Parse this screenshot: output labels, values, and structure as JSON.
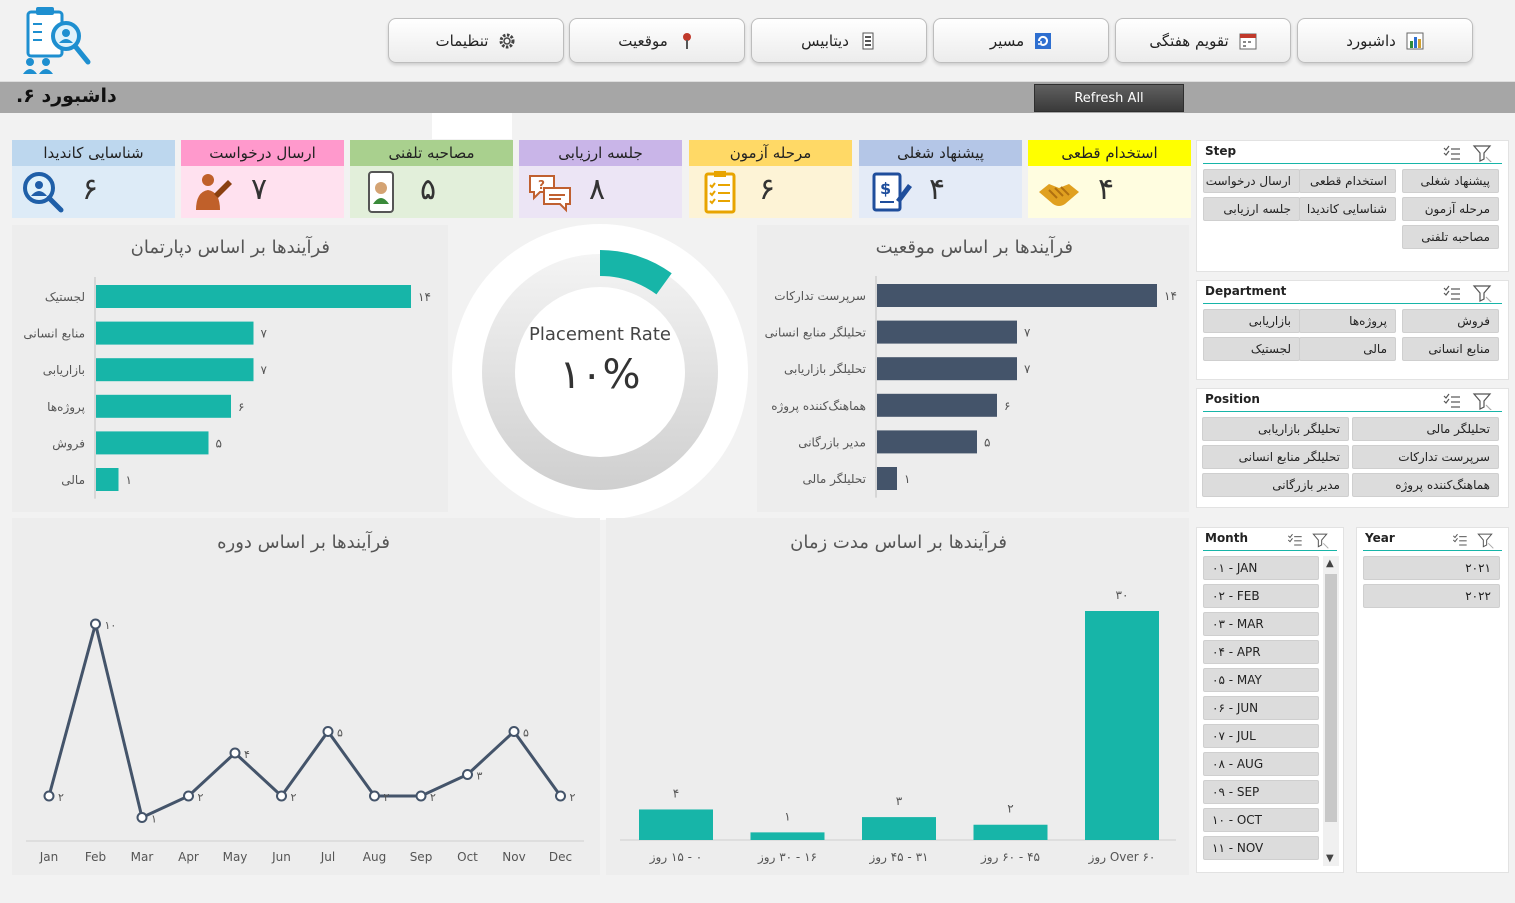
{
  "nav": [
    {
      "label": "داشبورد",
      "icon": "bar-chart-icon"
    },
    {
      "label": "تقویم هفتگی",
      "icon": "calendar-icon"
    },
    {
      "label": "مسیر",
      "icon": "refresh-icon"
    },
    {
      "label": "دیتابیس",
      "icon": "database-icon"
    },
    {
      "label": "موقعیت",
      "icon": "pin-icon"
    },
    {
      "label": "تنظیمات",
      "icon": "gear-icon"
    }
  ],
  "header": {
    "title": "داشبورد ۶.",
    "refresh_label": "Refresh All"
  },
  "kpis": [
    {
      "label": "استخدام قطعی",
      "value": "۴",
      "icon": "handshake-icon",
      "head_color": "#ffff00",
      "body_color": "#fffde0"
    },
    {
      "label": "پیشنهاد شغلی",
      "value": "۴",
      "icon": "contract-icon",
      "head_color": "#b4c6e7",
      "body_color": "#e4ebf7"
    },
    {
      "label": "مرحله آزمون",
      "value": "۶",
      "icon": "checklist-icon",
      "head_color": "#ffd966",
      "body_color": "#fdf3d6"
    },
    {
      "label": "جلسه ارزیابی",
      "value": "۸",
      "icon": "chat-icon",
      "head_color": "#c9b5e8",
      "body_color": "#ece5f5"
    },
    {
      "label": "مصاحبه تلفنی",
      "value": "۵",
      "icon": "phone-icon",
      "head_color": "#a9d08e",
      "body_color": "#e2efda"
    },
    {
      "label": "ارسال درخواست",
      "value": "۷",
      "icon": "person-write-icon",
      "head_color": "#ff99cc",
      "body_color": "#ffe1ef"
    },
    {
      "label": "شناسایی کاندیدا",
      "value": "۶",
      "icon": "person-search-icon",
      "head_color": "#bdd7ee",
      "body_color": "#ddebf7"
    }
  ],
  "placement": {
    "label": "Placement Rate",
    "value": "۱۰%",
    "fraction": 0.1,
    "accent": "#17b5a8"
  },
  "dept_chart_title": "فرآیندها بر اساس دپارتمان",
  "position_chart_title": "فرآیندها بر اساس موقعیت",
  "period_chart_title": "فرآیندها بر اساس دوره",
  "duration_chart_title": "فرآیندها بر اساس مدت زمان",
  "chart_data": [
    {
      "type": "bar",
      "orientation": "horizontal",
      "title": "فرآیندها بر اساس دپارتمان",
      "categories": [
        "لجستیک",
        "منابع انسانی",
        "بازاریابی",
        "پروژه‌ها",
        "فروش",
        "مالی"
      ],
      "values": [
        14,
        7,
        7,
        6,
        5,
        1
      ],
      "value_labels": [
        "۱۴",
        "۷",
        "۷",
        "۶",
        "۵",
        "۱"
      ],
      "color": "#17b5a8",
      "xlim": [
        0,
        14
      ]
    },
    {
      "type": "bar",
      "orientation": "horizontal",
      "title": "فرآیندها بر اساس موقعیت",
      "categories": [
        "سرپرست تدارکات",
        "تحلیلگر منابع انسانی",
        "تحلیلگر بازاریابی",
        "هماهنگ‌کننده پروژه",
        "مدیر بازرگانی",
        "تحلیلگر مالی"
      ],
      "values": [
        14,
        7,
        7,
        6,
        5,
        1
      ],
      "value_labels": [
        "۱۴",
        "۷",
        "۷",
        "۶",
        "۵",
        "۱"
      ],
      "color": "#44546a",
      "xlim": [
        0,
        14
      ]
    },
    {
      "type": "line",
      "title": "فرآیندها بر اساس دوره",
      "categories": [
        "Jan",
        "Feb",
        "Mar",
        "Apr",
        "May",
        "Jun",
        "Jul",
        "Aug",
        "Sep",
        "Oct",
        "Nov",
        "Dec"
      ],
      "values": [
        2,
        10,
        1,
        2,
        4,
        2,
        5,
        2,
        2,
        3,
        5,
        2
      ],
      "value_labels": [
        "۲",
        "۱۰",
        "۱",
        "۲",
        "۴",
        "۲",
        "۵",
        "۲",
        "۲",
        "۳",
        "۵",
        "۲"
      ],
      "color": "#44546a",
      "ylim": [
        0,
        11
      ]
    },
    {
      "type": "bar",
      "title": "فرآیندها بر اساس مدت زمان",
      "categories": [
        "۰ - ۱۵ روز",
        "۱۶ - ۳۰ روز",
        "۳۱ - ۴۵ روز",
        "۴۵ - ۶۰ روز",
        "Over ۶۰ روز"
      ],
      "values": [
        4,
        1,
        3,
        2,
        30
      ],
      "value_labels": [
        "۴",
        "۱",
        "۳",
        "۲",
        "۳۰"
      ],
      "color": "#17b5a8",
      "ylim": [
        0,
        30
      ]
    }
  ],
  "slicers": {
    "step": {
      "title": "Step",
      "items": [
        "پیشنهاد شغلی",
        "استخدام قطعی",
        "ارسال درخواست",
        "مرحله آزمون",
        "شناسایی کاندیدا",
        "جلسه ارزیابی",
        "مصاحبه تلفنی"
      ]
    },
    "department": {
      "title": "Department",
      "items": [
        "فروش",
        "پروژه‌ها",
        "بازاریابی",
        "منابع انسانی",
        "مالی",
        "لجستیک"
      ]
    },
    "position": {
      "title": "Position",
      "items": [
        "تحلیلگر مالی",
        "تحلیلگر بازاریابی",
        "سرپرست تدارکات",
        "تحلیلگر منابع انسانی",
        "هماهنگ‌کننده پروژه",
        "مدیر بازرگانی"
      ]
    },
    "month": {
      "title": "Month",
      "items": [
        "۰۱ - JAN",
        "۰۲ - FEB",
        "۰۳ - MAR",
        "۰۴ - APR",
        "۰۵ - MAY",
        "۰۶ - JUN",
        "۰۷ - JUL",
        "۰۸ - AUG",
        "۰۹ - SEP",
        "۱۰ - OCT",
        "۱۱ - NOV"
      ]
    },
    "year": {
      "title": "Year",
      "items": [
        "۲۰۲۱",
        "۲۰۲۲"
      ]
    }
  }
}
